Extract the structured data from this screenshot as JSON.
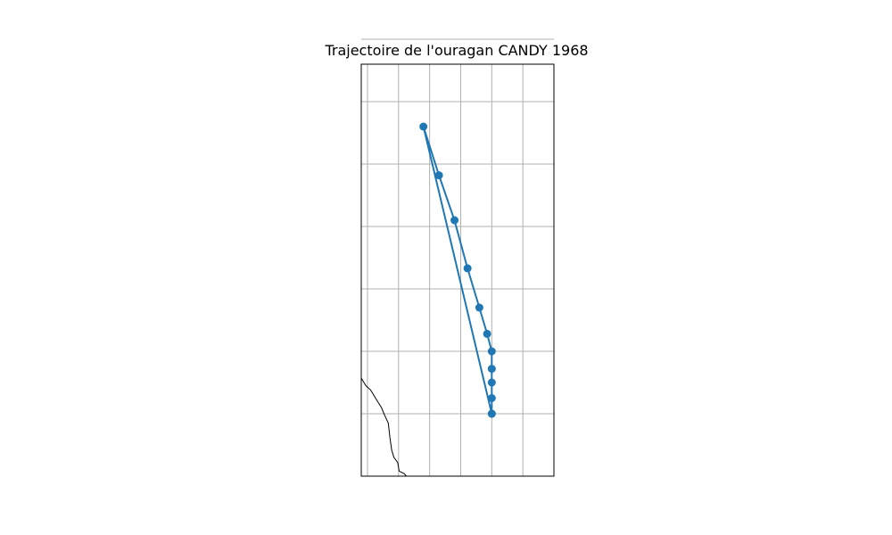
{
  "chart_data": {
    "type": "line",
    "title": "Trajectoire de l'ouragan CANDY 1968",
    "xlabel": "",
    "ylabel": "",
    "grid": true,
    "tick_labels_shown": false,
    "x_grid": [
      -97,
      -96,
      -95,
      -94,
      -93,
      -92
    ],
    "y_grid": [
      27,
      28,
      29,
      30,
      31,
      32,
      33
    ],
    "xlim": [
      -97.2,
      -91.0
    ],
    "ylim": [
      26.0,
      32.6
    ],
    "series": [
      {
        "color": "#1f77b4",
        "marker": "circle",
        "points": [
          {
            "lon": -93.0,
            "lat": 27.0
          },
          {
            "lon": -93.0,
            "lat": 27.25
          },
          {
            "lon": -93.0,
            "lat": 27.5
          },
          {
            "lon": -93.0,
            "lat": 27.72
          },
          {
            "lon": -93.0,
            "lat": 28.0
          },
          {
            "lon": -93.15,
            "lat": 28.28
          },
          {
            "lon": -93.4,
            "lat": 28.7
          },
          {
            "lon": -93.78,
            "lat": 29.33
          },
          {
            "lon": -94.2,
            "lat": 30.1
          },
          {
            "lon": -94.7,
            "lat": 30.82
          },
          {
            "lon": -95.2,
            "lat": 31.6
          },
          {
            "lon": -93.0,
            "lat": 27.0
          }
        ]
      }
    ],
    "coastline": [
      {
        "lon": -97.2,
        "lat": 27.57
      },
      {
        "lon": -97.05,
        "lat": 27.45
      },
      {
        "lon": -96.9,
        "lat": 27.38
      },
      {
        "lon": -96.8,
        "lat": 27.3
      },
      {
        "lon": -96.68,
        "lat": 27.2
      },
      {
        "lon": -96.55,
        "lat": 27.1
      },
      {
        "lon": -96.45,
        "lat": 26.98
      },
      {
        "lon": -96.33,
        "lat": 26.85
      },
      {
        "lon": -96.28,
        "lat": 26.62
      },
      {
        "lon": -96.22,
        "lat": 26.42
      },
      {
        "lon": -96.15,
        "lat": 26.3
      },
      {
        "lon": -96.03,
        "lat": 26.22
      },
      {
        "lon": -95.98,
        "lat": 26.08
      },
      {
        "lon": -95.82,
        "lat": 26.04
      },
      {
        "lon": -95.75,
        "lat": 26.0
      }
    ]
  }
}
